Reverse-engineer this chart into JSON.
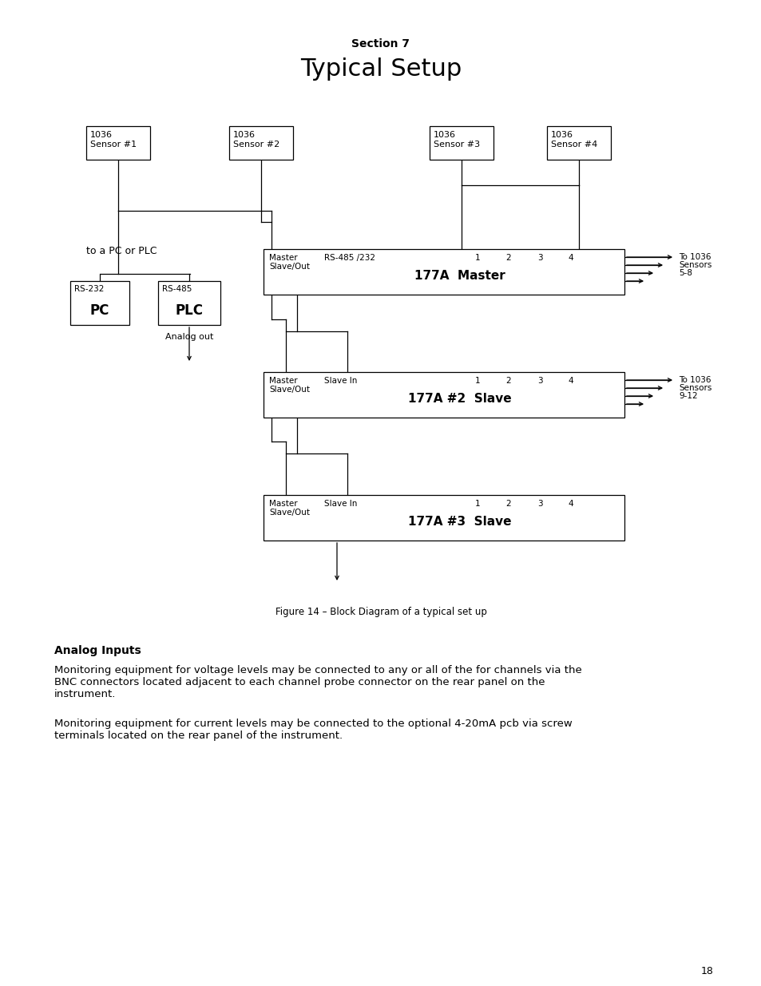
{
  "section_label": "Section 7",
  "title": "Typical Setup",
  "figure_caption": "Figure 14 – Block Diagram of a typical set up",
  "page_number": "18",
  "analog_inputs_title": "Analog Inputs",
  "analog_inputs_para1": "Monitoring equipment for voltage levels may be connected to any or all of the for channels via the\nBNC connectors located adjacent to each channel probe connector on the rear panel on the\ninstrument.",
  "analog_inputs_para2": "Monitoring equipment for current levels may be connected to the optional 4-20mA pcb via screw\nterminals located on the rear panel of the instrument.",
  "bg_color": "#ffffff"
}
